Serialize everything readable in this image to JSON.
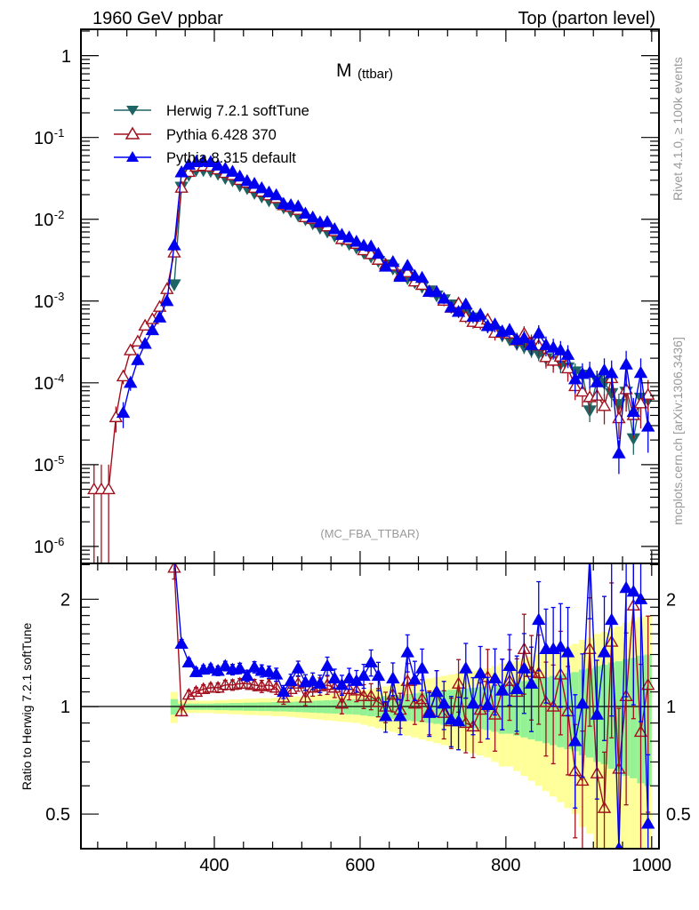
{
  "header": {
    "left": "1960 GeV ppbar",
    "right": "Top (parton level)"
  },
  "plot_title": {
    "main": "M",
    "sub": "(ttbar)"
  },
  "analysis_tag": "(MC_FBA_TTBAR)",
  "side_text": {
    "rivet": "Rivet 4.1.0, ≥ 100k events",
    "mcplots": "mcplots.cern.ch [arXiv:1306.3436]"
  },
  "chart_data": [
    {
      "type": "line",
      "panel": "main",
      "title": "M (ttbar)",
      "xlabel": "",
      "ylabel": "",
      "yscale": "log",
      "xlim": [
        217,
        1010
      ],
      "ylim": [
        6.2e-07,
        2.1
      ],
      "ytick_labels": [
        "1",
        "10^-1",
        "10^-2",
        "10^-3",
        "10^-4",
        "10^-5",
        "10^-6"
      ],
      "ytick_values": [
        1,
        0.1,
        0.01,
        0.001,
        0.0001,
        1e-05,
        1e-06
      ],
      "legend_position": "top-left",
      "x": [
        235,
        245,
        255,
        265,
        275,
        285,
        295,
        305,
        315,
        325,
        335,
        345,
        355,
        365,
        375,
        385,
        395,
        405,
        415,
        425,
        435,
        445,
        455,
        465,
        475,
        485,
        495,
        505,
        515,
        525,
        535,
        545,
        555,
        565,
        575,
        585,
        595,
        605,
        615,
        625,
        635,
        645,
        655,
        665,
        675,
        685,
        695,
        705,
        715,
        725,
        735,
        745,
        755,
        765,
        775,
        785,
        795,
        805,
        815,
        825,
        835,
        845,
        855,
        865,
        875,
        885,
        895,
        905,
        915,
        925,
        935,
        945,
        955,
        965,
        975,
        985,
        995
      ],
      "series": [
        {
          "name": "Herwig 7.2.1 softTune",
          "color": "#1f6464",
          "marker": "triangle-down-filled",
          "values": [
            null,
            null,
            null,
            null,
            null,
            null,
            null,
            null,
            null,
            null,
            null,
            0.0016,
            0.025,
            0.035,
            0.04,
            0.04,
            0.039,
            0.036,
            0.032,
            0.03,
            0.026,
            0.024,
            0.021,
            0.019,
            0.017,
            0.016,
            0.014,
            0.0126,
            0.0112,
            0.01,
            0.0089,
            0.0079,
            0.0071,
            0.0063,
            0.0056,
            0.005,
            0.0045,
            0.0039,
            0.0035,
            0.0031,
            0.0028,
            0.0025,
            0.0021,
            0.0019,
            0.0017,
            0.0015,
            0.00135,
            0.00117,
            0.00105,
            0.00091,
            0.00081,
            0.00071,
            0.00063,
            0.00055,
            0.00049,
            0.00043,
            0.00038,
            0.00034,
            0.0003,
            0.000275,
            0.00025,
            0.00023,
            0.0002,
            0.000186,
            0.00017,
            0.000155,
            0.000138,
            0.000126,
            4.6e-05,
            0.000107,
            0.0001,
            7.5e-05,
            5.5e-05,
            7.8e-05,
            2.1e-05,
            6.6e-05,
            6.2e-05
          ],
          "rel_err": [
            null,
            null,
            null,
            null,
            null,
            null,
            null,
            null,
            null,
            null,
            null,
            0.05,
            0.02,
            0.02,
            0.02,
            0.02,
            0.02,
            0.022,
            0.022,
            0.024,
            0.024,
            0.026,
            0.026,
            0.028,
            0.028,
            0.03,
            0.03,
            0.032,
            0.034,
            0.036,
            0.038,
            0.04,
            0.042,
            0.044,
            0.046,
            0.048,
            0.05,
            0.055,
            0.06,
            0.065,
            0.07,
            0.075,
            0.08,
            0.085,
            0.09,
            0.095,
            0.1,
            0.105,
            0.11,
            0.115,
            0.12,
            0.125,
            0.13,
            0.135,
            0.14,
            0.15,
            0.16,
            0.16,
            0.17,
            0.18,
            0.19,
            0.2,
            0.21,
            0.22,
            0.23,
            0.24,
            0.25,
            0.27,
            0.28,
            0.3,
            0.31,
            0.33,
            0.34,
            0.36,
            0.37,
            0.39,
            0.4
          ]
        },
        {
          "name": "Pythia 6.428 370",
          "color": "#a0101e",
          "marker": "triangle-up-open",
          "values_below_threshold": [
            5e-06,
            5e-06,
            5e-06,
            3.8e-05,
            0.00012,
            0.00025,
            0.00032,
            0.0005,
            0.0006,
            0.00085,
            0.0014
          ],
          "low_rel_err": [
            1,
            1,
            1,
            0.35,
            0.2,
            0.14,
            0.1,
            0.08,
            0.07,
            0.06,
            0.05
          ]
        },
        {
          "name": "Pythia 8.315 default",
          "color": "#0000ee",
          "marker": "triangle-up-filled",
          "values_below_threshold": [
            null,
            null,
            null,
            null,
            4.3e-05,
            0.0001,
            0.00019,
            0.0003,
            0.00044,
            0.00063,
            0.001
          ],
          "low_rel_err": [
            null,
            null,
            null,
            null,
            0.35,
            0.2,
            0.14,
            0.1,
            0.08,
            0.07,
            0.06
          ]
        }
      ]
    },
    {
      "type": "line",
      "panel": "ratio",
      "ylabel": "Ratio to Herwig 7.2.1 softTune",
      "yscale": "log",
      "ylim": [
        0.4,
        2.52
      ],
      "ytick_labels": [
        "2",
        "1",
        "0.5"
      ],
      "ytick_values": [
        2,
        1,
        0.5
      ],
      "xtick_labels": [
        "400",
        "600",
        "800",
        "1000"
      ],
      "xtick_values": [
        400,
        600,
        800,
        1000
      ],
      "x_start": 345,
      "band_colors": {
        "inner": "#94f294",
        "outer": "#ffff99"
      },
      "series": [
        {
          "name": "Pythia 6.428 370",
          "values": [
            2.45,
            0.97,
            1.08,
            1.1,
            1.12,
            1.13,
            1.13,
            1.15,
            1.15,
            1.16,
            1.16,
            1.15,
            1.14,
            1.15,
            1.13,
            1.06,
            1.12,
            1.16,
            1.06,
            1.13,
            1.14,
            1.15,
            1.13,
            1.02,
            1.12,
            1.11,
            1.07,
            1.07,
            1.03,
            1.0,
            1.08,
            0.98,
            1.18,
            1.02,
            1.05,
            0.97,
            1.1,
            0.96,
            0.91,
            1.16,
            0.9,
            0.88,
            0.98,
            1.21,
            0.95,
            1.11,
            1.18,
            1.1,
            1.45,
            1.25,
            1.24,
            1.03,
            1.0,
            1.23,
            0.97,
            0.66,
            0.62,
            1.45,
            0.65,
            0.52,
            1.52,
            0.67,
            1.07,
            1.92,
            0.85,
            1.15
          ]
        },
        {
          "name": "Pythia 8.315 default",
          "values": [
            3.0,
            1.5,
            1.33,
            1.25,
            1.27,
            1.28,
            1.26,
            1.3,
            1.27,
            1.28,
            1.22,
            1.29,
            1.26,
            1.25,
            1.23,
            1.1,
            1.18,
            1.28,
            1.17,
            1.18,
            1.16,
            1.3,
            1.2,
            1.15,
            1.2,
            1.18,
            1.22,
            1.33,
            1.22,
            0.94,
            1.2,
            0.94,
            1.42,
            1.19,
            1.28,
            0.96,
            1.1,
            1.02,
            0.92,
            0.91,
            1.28,
            1.02,
            1.24,
            1.01,
            1.2,
            1.11,
            1.3,
            1.12,
            1.28,
            1.16,
            1.75,
            1.45,
            1.45,
            1.47,
            1.42,
            0.8,
            1.02,
            2.9,
            0.95,
            1.42,
            1.75,
            0.25,
            2.15,
            2.1,
            2.0,
            0.47
          ]
        }
      ]
    }
  ]
}
